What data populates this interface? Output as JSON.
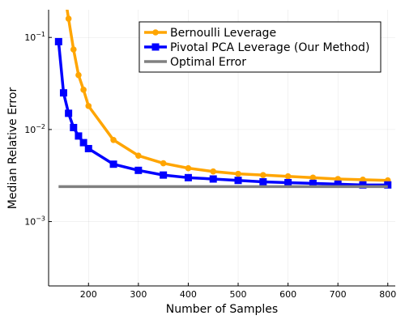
{
  "chart_data": {
    "type": "line",
    "xlabel": "Number of Samples",
    "ylabel": "Median Relative Error",
    "xlim": [
      120,
      815
    ],
    "ylim": [
      0.0002,
      0.2
    ],
    "y_scale": "log",
    "grid": true,
    "legend_position": "top-right",
    "x_ticks": [
      {
        "value": 200,
        "label": "200"
      },
      {
        "value": 300,
        "label": "300"
      },
      {
        "value": 400,
        "label": "400"
      },
      {
        "value": 500,
        "label": "500"
      },
      {
        "value": 600,
        "label": "600"
      },
      {
        "value": 700,
        "label": "700"
      },
      {
        "value": 800,
        "label": "800"
      }
    ],
    "y_ticks": [
      {
        "value": 0.1,
        "label_base": "10",
        "label_exp": "−1"
      },
      {
        "value": 0.01,
        "label_base": "10",
        "label_exp": "−2"
      },
      {
        "value": 0.001,
        "label_base": "10",
        "label_exp": "−3"
      }
    ],
    "series": [
      {
        "name": "Bernoulli Leverage",
        "color": "#FFA500",
        "marker": "circle",
        "x": [
          150,
          160,
          170,
          180,
          190,
          200,
          250,
          300,
          350,
          400,
          450,
          500,
          550,
          600,
          650,
          700,
          750,
          800
        ],
        "y": [
          0.35,
          0.16,
          0.074,
          0.039,
          0.027,
          0.018,
          0.0077,
          0.0052,
          0.0043,
          0.0038,
          0.0035,
          0.0033,
          0.0032,
          0.0031,
          0.003,
          0.0029,
          0.00285,
          0.0028
        ]
      },
      {
        "name": "Pivotal PCA Leverage (Our Method)",
        "color": "#0000FF",
        "marker": "square",
        "x": [
          140,
          150,
          160,
          170,
          180,
          190,
          200,
          250,
          300,
          350,
          400,
          450,
          500,
          550,
          600,
          650,
          700,
          750,
          800
        ],
        "y": [
          0.09,
          0.025,
          0.015,
          0.0105,
          0.0085,
          0.0072,
          0.0062,
          0.0042,
          0.0036,
          0.0032,
          0.003,
          0.0029,
          0.0028,
          0.0027,
          0.00265,
          0.0026,
          0.00255,
          0.0025,
          0.0025
        ]
      },
      {
        "name": "Optimal Error",
        "color": "#808080",
        "marker": "none",
        "x": [
          140,
          800
        ],
        "y": [
          0.0024,
          0.0024
        ]
      }
    ]
  }
}
